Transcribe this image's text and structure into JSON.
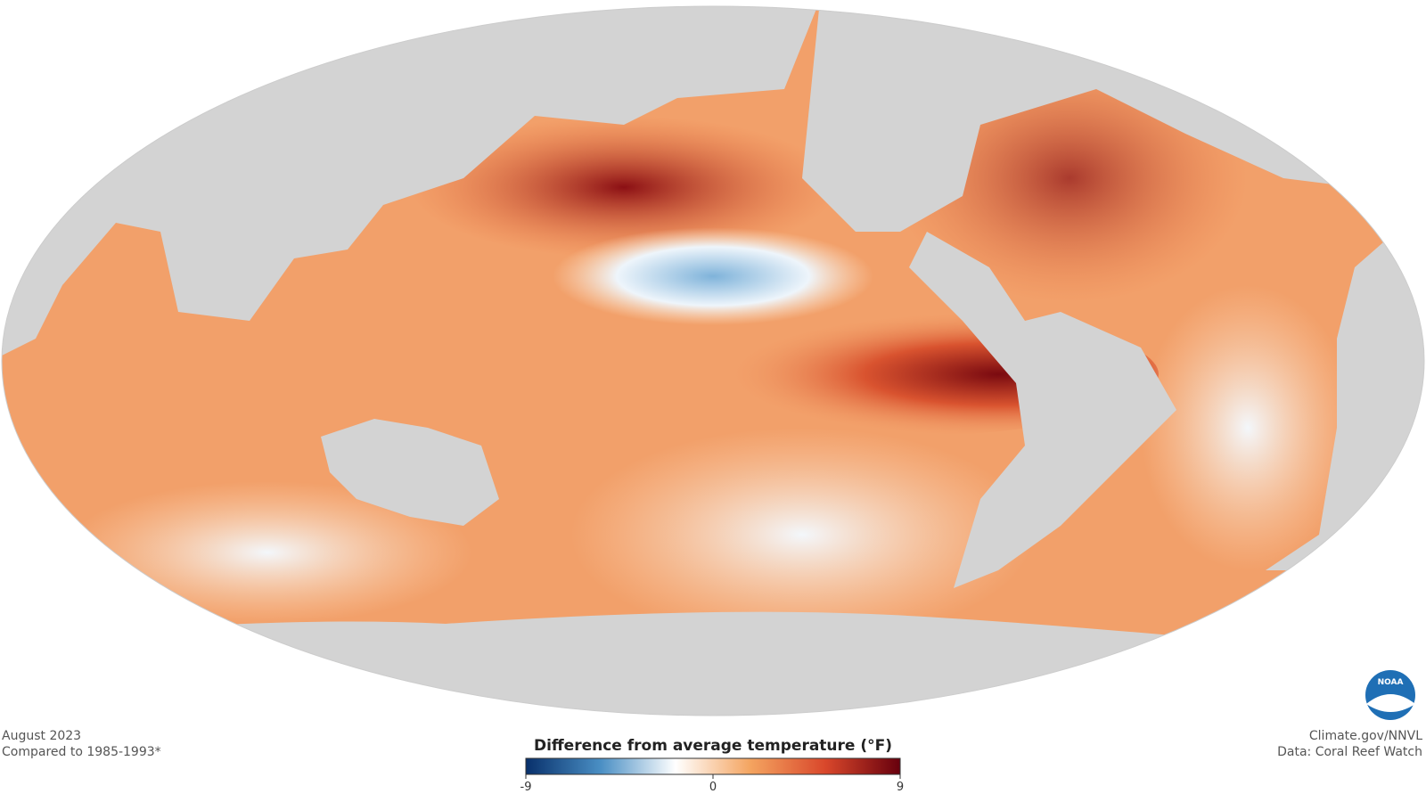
{
  "header": {
    "date": "August 2023",
    "baseline": "Compared to 1985-1993*"
  },
  "credits": {
    "source": "Climate.gov/NNVL",
    "data": "Data: Coral Reef Watch"
  },
  "logo": "NOAA",
  "colorbar": {
    "label": "Difference from average temperature (°F)",
    "lim": [
      -9,
      9
    ],
    "ticks": [
      -9,
      0,
      9
    ],
    "colors": [
      "#08306b",
      "#4a8fc4",
      "#ffffff",
      "#f4a460",
      "#d9472b",
      "#67000d"
    ]
  }
}
